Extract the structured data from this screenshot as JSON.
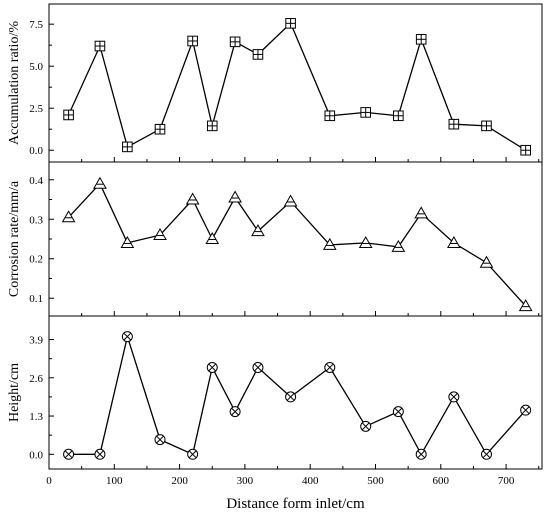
{
  "chart_data": {
    "type": "line",
    "xlabel": "Distance form inlet/cm",
    "x_ticks": [
      0,
      100,
      200,
      300,
      400,
      500,
      600,
      700
    ],
    "xlim": [
      0,
      755
    ],
    "line_color": "#000000",
    "panels": [
      {
        "ylabel": "Accumulation ratio/%",
        "marker": "square-plus",
        "ylim": [
          -0.7,
          8.7
        ],
        "y_ticks": [
          "0.0",
          "2.5",
          "5.0",
          "7.5"
        ],
        "y_tick_values": [
          0.0,
          2.5,
          5.0,
          7.5
        ],
        "series": [
          {
            "x": [
              30,
              78,
              120,
              170,
              220,
              250,
              285,
              320,
              370,
              430,
              485,
              535,
              570,
              620,
              670,
              730
            ],
            "y": [
              2.1,
              6.2,
              0.2,
              1.25,
              6.5,
              1.45,
              6.45,
              5.7,
              7.55,
              2.05,
              2.25,
              2.05,
              6.6,
              1.55,
              1.45,
              0.0
            ]
          }
        ]
      },
      {
        "ylabel": "Corrosion rate/mm/a",
        "marker": "triangle",
        "ylim": [
          0.055,
          0.445
        ],
        "y_ticks": [
          "0.1",
          "0.2",
          "0.3",
          "0.4"
        ],
        "y_tick_values": [
          0.1,
          0.2,
          0.3,
          0.4
        ],
        "series": [
          {
            "x": [
              30,
              78,
              120,
              170,
              220,
              250,
              285,
              320,
              370,
              430,
              485,
              535,
              570,
              620,
              670,
              730
            ],
            "y": [
              0.305,
              0.39,
              0.24,
              0.26,
              0.35,
              0.25,
              0.355,
              0.27,
              0.345,
              0.235,
              0.24,
              0.23,
              0.315,
              0.24,
              0.19,
              0.08
            ]
          }
        ]
      },
      {
        "ylabel": "Height/cm",
        "marker": "circle-x",
        "ylim": [
          -0.5,
          4.7
        ],
        "y_ticks": [
          "0.0",
          "1.3",
          "2.6",
          "3.9"
        ],
        "y_tick_values": [
          0.0,
          1.3,
          2.6,
          3.9
        ],
        "series": [
          {
            "x": [
              30,
              78,
              120,
              170,
              220,
              250,
              285,
              320,
              370,
              430,
              485,
              535,
              570,
              620,
              670,
              730
            ],
            "y": [
              0.0,
              0.0,
              4.0,
              0.5,
              0.0,
              2.95,
              1.45,
              2.95,
              1.95,
              2.95,
              0.95,
              1.45,
              0.0,
              1.95,
              0.0,
              1.5
            ]
          }
        ]
      }
    ]
  }
}
